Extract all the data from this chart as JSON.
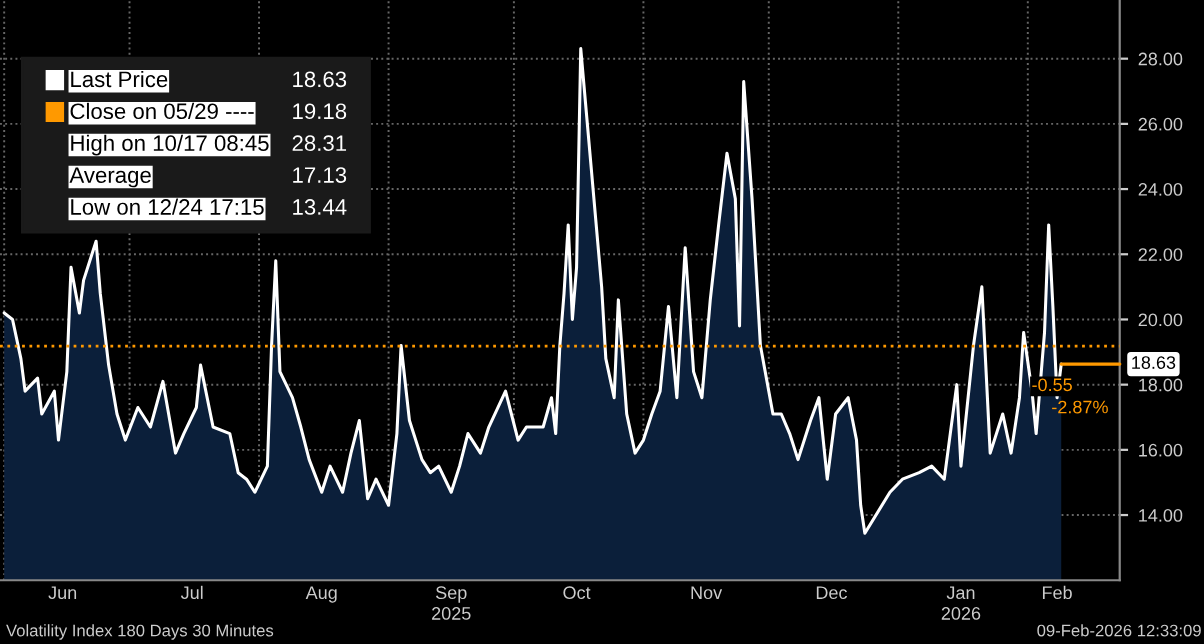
{
  "chart_data": {
    "type": "area",
    "x": [
      "2025-06-01",
      "2025-06-03",
      "2025-06-05",
      "2025-06-06",
      "2025-06-09",
      "2025-06-10",
      "2025-06-13",
      "2025-06-14",
      "2025-06-16",
      "2025-06-17",
      "2025-06-19",
      "2025-06-20",
      "2025-06-23",
      "2025-06-24",
      "2025-06-26",
      "2025-06-28",
      "2025-06-30",
      "2025-07-03",
      "2025-07-06",
      "2025-07-09",
      "2025-07-12",
      "2025-07-14",
      "2025-07-17",
      "2025-07-18",
      "2025-07-21",
      "2025-07-25",
      "2025-07-27",
      "2025-07-29",
      "2025-07-31",
      "2025-08-03",
      "2025-08-04",
      "2025-08-05",
      "2025-08-06",
      "2025-08-09",
      "2025-08-11",
      "2025-08-13",
      "2025-08-16",
      "2025-08-18",
      "2025-08-21",
      "2025-08-23",
      "2025-08-25",
      "2025-08-27",
      "2025-08-29",
      "2025-09-01",
      "2025-09-03",
      "2025-09-04",
      "2025-09-06",
      "2025-09-09",
      "2025-09-11",
      "2025-09-13",
      "2025-09-16",
      "2025-09-18",
      "2025-09-20",
      "2025-09-23",
      "2025-09-25",
      "2025-09-29",
      "2025-10-02",
      "2025-10-04",
      "2025-10-08",
      "2025-10-10",
      "2025-10-11",
      "2025-10-12",
      "2025-10-13",
      "2025-10-14",
      "2025-10-15",
      "2025-10-16",
      "2025-10-17",
      "2025-10-22",
      "2025-10-23",
      "2025-10-25",
      "2025-10-26",
      "2025-10-28",
      "2025-10-30",
      "2025-11-01",
      "2025-11-03",
      "2025-11-05",
      "2025-11-07",
      "2025-11-09",
      "2025-11-11",
      "2025-11-13",
      "2025-11-15",
      "2025-11-17",
      "2025-11-19",
      "2025-11-21",
      "2025-11-23",
      "2025-11-24",
      "2025-11-25",
      "2025-11-27",
      "2025-11-29",
      "2025-12-02",
      "2025-12-04",
      "2025-12-06",
      "2025-12-08",
      "2025-12-11",
      "2025-12-13",
      "2025-12-15",
      "2025-12-17",
      "2025-12-20",
      "2025-12-22",
      "2025-12-23",
      "2025-12-24",
      "2025-12-30",
      "2026-01-02",
      "2026-01-06",
      "2026-01-09",
      "2026-01-12",
      "2026-01-15",
      "2026-01-16",
      "2026-01-19",
      "2026-01-21",
      "2026-01-23",
      "2026-01-26",
      "2026-01-28",
      "2026-01-30",
      "2026-01-31",
      "2026-02-02",
      "2026-02-03",
      "2026-02-05",
      "2026-02-06",
      "2026-02-07",
      "2026-02-08",
      "2026-02-09"
    ],
    "series": [
      {
        "name": "Last Price",
        "color": "#ffffff",
        "values": [
          20.2,
          20.0,
          18.8,
          17.8,
          18.2,
          17.1,
          17.8,
          16.3,
          18.4,
          21.6,
          20.2,
          21.2,
          22.4,
          20.8,
          18.6,
          17.1,
          16.3,
          17.3,
          16.7,
          18.1,
          15.9,
          16.5,
          17.3,
          18.6,
          16.7,
          16.5,
          15.3,
          15.1,
          14.7,
          15.5,
          19.2,
          21.8,
          18.4,
          17.6,
          16.7,
          15.7,
          14.7,
          15.5,
          14.7,
          15.9,
          16.9,
          14.5,
          15.1,
          14.3,
          16.5,
          19.2,
          16.9,
          15.7,
          15.3,
          15.5,
          14.7,
          15.5,
          16.5,
          15.9,
          16.7,
          17.8,
          16.3,
          16.7,
          16.7,
          17.6,
          16.5,
          19.2,
          20.8,
          22.9,
          20.0,
          21.6,
          28.31,
          21.0,
          18.8,
          17.6,
          20.6,
          17.1,
          15.9,
          16.3,
          17.1,
          17.8,
          20.4,
          17.6,
          22.2,
          18.4,
          17.6,
          20.6,
          22.9,
          25.1,
          23.7,
          19.8,
          27.3,
          23.7,
          19.2,
          17.1,
          17.1,
          16.5,
          15.7,
          16.9,
          17.6,
          15.1,
          17.1,
          17.6,
          16.3,
          14.3,
          13.44,
          14.7,
          15.1,
          15.3,
          15.5,
          15.1,
          18.0,
          15.5,
          19.2,
          21.0,
          15.9,
          17.1,
          15.9,
          17.6,
          19.6,
          17.8,
          16.5,
          19.6,
          22.9,
          20.4,
          17.6,
          18.63
        ]
      }
    ],
    "xlim": [
      "2025-05-31",
      "2026-02-23"
    ],
    "xticks": [
      {
        "value": "2025-06-01",
        "label": null
      },
      {
        "value": "2025-06-15",
        "label": "Jun"
      },
      {
        "value": "2025-07-01",
        "label": null
      },
      {
        "value": "2025-07-16",
        "label": "Jul"
      },
      {
        "value": "2025-08-01",
        "label": null
      },
      {
        "value": "2025-08-16",
        "label": "Aug"
      },
      {
        "value": "2025-09-01",
        "label": null
      },
      {
        "value": "2025-09-16",
        "label": "Sep\n2025"
      },
      {
        "value": "2025-10-01",
        "label": null
      },
      {
        "value": "2025-10-16",
        "label": "Oct"
      },
      {
        "value": "2025-11-01",
        "label": null
      },
      {
        "value": "2025-11-16",
        "label": "Nov"
      },
      {
        "value": "2025-12-01",
        "label": null
      },
      {
        "value": "2025-12-16",
        "label": "Dec"
      },
      {
        "value": "2026-01-01",
        "label": null
      },
      {
        "value": "2026-01-16",
        "label": "Jan\n2026"
      },
      {
        "value": "2026-02-01",
        "label": null
      },
      {
        "value": "2026-02-08",
        "label": "Feb"
      }
    ],
    "ylim": [
      12,
      29.8
    ],
    "yticks": [
      {
        "value": 14,
        "label": "14.00"
      },
      {
        "value": 16,
        "label": "16.00"
      },
      {
        "value": 18,
        "label": "18.00"
      },
      {
        "value": 20,
        "label": "20.00"
      },
      {
        "value": 22,
        "label": "22.00"
      },
      {
        "value": 24,
        "label": "24.00"
      },
      {
        "value": 26,
        "label": "26.00"
      },
      {
        "value": 28,
        "label": "28.00"
      }
    ],
    "ref_lines": [
      {
        "axis": "y",
        "value": 19.18,
        "label": "Close on 05/29 ----",
        "color": "#ff9900",
        "line_style": "dotted"
      }
    ],
    "grid": true,
    "legend": "top left",
    "annotations": [
      "18.63",
      "19.18",
      "High on 10/17 08:45",
      "28.31",
      "Average",
      "17.13",
      "Low on 12/24 17:15",
      "13.44",
      {
        "text": "18.63",
        "x": "2026-02-09",
        "y": 18.63
      },
      "-0.55",
      "-2.87%",
      "Volatility Index 180 Days 30 Minutes",
      "09-Feb-2026 12:33:09"
    ]
  }
}
